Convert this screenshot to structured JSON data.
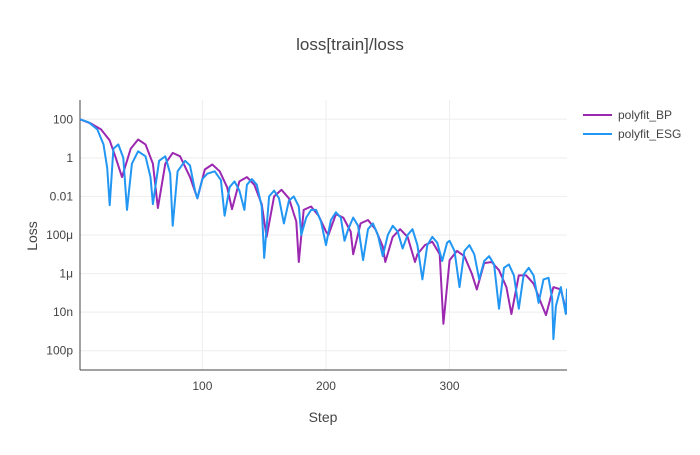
{
  "chart_data": {
    "type": "line",
    "title": "loss[train]/loss",
    "xlabel": "Step",
    "ylabel": "Loss",
    "xlim": [
      1,
      395
    ],
    "ylim": [
      1e-11,
      1000
    ],
    "yscale": "log",
    "grid": true,
    "legend": "top-right",
    "x_ticks": [
      100,
      200,
      300
    ],
    "x_tick_labels": [
      "100",
      "200",
      "300"
    ],
    "y_ticks": [
      100,
      1,
      0.01,
      0.0001,
      1e-06,
      1e-08,
      1e-10
    ],
    "y_tick_labels": [
      "100",
      "1",
      "0.01",
      "100μ",
      "1μ",
      "10n",
      "100p"
    ],
    "series": [
      {
        "name": "polyfit_BP",
        "color": "#9c27b0",
        "points": [
          [
            1,
            100
          ],
          [
            10,
            60
          ],
          [
            18,
            30
          ],
          [
            25,
            8
          ],
          [
            30,
            1
          ],
          [
            35,
            0.1
          ],
          [
            42,
            3
          ],
          [
            48,
            9
          ],
          [
            54,
            5
          ],
          [
            60,
            0.5
          ],
          [
            64,
            0.0025
          ],
          [
            70,
            0.5
          ],
          [
            76,
            1.8
          ],
          [
            82,
            1.2
          ],
          [
            90,
            0.1
          ],
          [
            96,
            0.008
          ],
          [
            102,
            0.25
          ],
          [
            108,
            0.45
          ],
          [
            114,
            0.2
          ],
          [
            120,
            0.03
          ],
          [
            124,
            0.0022
          ],
          [
            130,
            0.06
          ],
          [
            136,
            0.1
          ],
          [
            142,
            0.04
          ],
          [
            148,
            0.004
          ],
          [
            152,
            8e-05
          ],
          [
            158,
            0.01
          ],
          [
            164,
            0.022
          ],
          [
            170,
            0.008
          ],
          [
            176,
            0.0005
          ],
          [
            178,
            4e-06
          ],
          [
            182,
            0.002
          ],
          [
            188,
            0.003
          ],
          [
            194,
            0.001
          ],
          [
            200,
            0.00015
          ],
          [
            202,
            0.0001
          ],
          [
            208,
            0.0012
          ],
          [
            214,
            0.0008
          ],
          [
            220,
            0.00015
          ],
          [
            222,
            1e-05
          ],
          [
            228,
            0.0004
          ],
          [
            234,
            0.0006
          ],
          [
            240,
            0.0002
          ],
          [
            246,
            2.5e-05
          ],
          [
            248,
            4e-06
          ],
          [
            254,
            8e-05
          ],
          [
            260,
            0.0002
          ],
          [
            266,
            8e-05
          ],
          [
            272,
            4e-06
          ],
          [
            274,
            1e-05
          ],
          [
            280,
            3e-05
          ],
          [
            286,
            4.5e-05
          ],
          [
            292,
            1e-05
          ],
          [
            295,
            2.5e-09
          ],
          [
            300,
            5e-06
          ],
          [
            306,
            1.5e-05
          ],
          [
            312,
            8e-06
          ],
          [
            318,
            1e-06
          ],
          [
            322,
            1.5e-07
          ],
          [
            328,
            3.5e-06
          ],
          [
            334,
            4e-06
          ],
          [
            340,
            1.5e-06
          ],
          [
            346,
            2e-07
          ],
          [
            350,
            8e-09
          ],
          [
            356,
            8e-07
          ],
          [
            362,
            8e-07
          ],
          [
            368,
            3e-07
          ],
          [
            374,
            3e-08
          ],
          [
            378,
            7e-09
          ],
          [
            384,
            2e-07
          ],
          [
            390,
            1.5e-07
          ],
          [
            395,
            8e-09
          ]
        ]
      },
      {
        "name": "polyfit_ESG",
        "color": "#2196f3",
        "points": [
          [
            1,
            100
          ],
          [
            8,
            70
          ],
          [
            15,
            30
          ],
          [
            20,
            5
          ],
          [
            23,
            0.3
          ],
          [
            25,
            0.0035
          ],
          [
            28,
            3
          ],
          [
            32,
            5
          ],
          [
            36,
            1
          ],
          [
            39,
            0.002
          ],
          [
            43,
            0.5
          ],
          [
            48,
            2.2
          ],
          [
            54,
            1.2
          ],
          [
            58,
            0.1
          ],
          [
            60,
            0.004
          ],
          [
            65,
            0.7
          ],
          [
            70,
            1.2
          ],
          [
            74,
            0.15
          ],
          [
            76,
            0.0003
          ],
          [
            80,
            0.2
          ],
          [
            86,
            0.7
          ],
          [
            90,
            0.4
          ],
          [
            94,
            0.02
          ],
          [
            96,
            0.008
          ],
          [
            100,
            0.08
          ],
          [
            104,
            0.15
          ],
          [
            110,
            0.2
          ],
          [
            115,
            0.07
          ],
          [
            118,
            0.001
          ],
          [
            122,
            0.03
          ],
          [
            126,
            0.06
          ],
          [
            130,
            0.02
          ],
          [
            134,
            0.002
          ],
          [
            136,
            0.04
          ],
          [
            140,
            0.08
          ],
          [
            144,
            0.04
          ],
          [
            148,
            0.003
          ],
          [
            150,
            6.5e-06
          ],
          [
            154,
            0.01
          ],
          [
            158,
            0.02
          ],
          [
            162,
            0.008
          ],
          [
            166,
            0.0004
          ],
          [
            170,
            0.006
          ],
          [
            174,
            0.01
          ],
          [
            178,
            0.003
          ],
          [
            180,
            0.0001
          ],
          [
            184,
            0.0008
          ],
          [
            188,
            0.002
          ],
          [
            192,
            0.002
          ],
          [
            196,
            0.0005
          ],
          [
            200,
            3e-05
          ],
          [
            204,
            0.0006
          ],
          [
            208,
            0.0015
          ],
          [
            212,
            0.0008
          ],
          [
            215,
            5e-05
          ],
          [
            218,
            0.0002
          ],
          [
            222,
            0.0008
          ],
          [
            226,
            0.0003
          ],
          [
            230,
            5e-06
          ],
          [
            234,
            0.0002
          ],
          [
            238,
            0.0004
          ],
          [
            242,
            0.0001
          ],
          [
            246,
            8e-06
          ],
          [
            250,
            0.0001
          ],
          [
            254,
            0.0003
          ],
          [
            258,
            0.00015
          ],
          [
            262,
            2e-05
          ],
          [
            266,
            0.0001
          ],
          [
            270,
            0.0002
          ],
          [
            274,
            3e-05
          ],
          [
            278,
            5e-07
          ],
          [
            282,
            3e-05
          ],
          [
            286,
            8e-05
          ],
          [
            290,
            4e-05
          ],
          [
            294,
            4.5e-06
          ],
          [
            298,
            4e-05
          ],
          [
            300,
            5e-05
          ],
          [
            304,
            1.5e-05
          ],
          [
            308,
            2e-07
          ],
          [
            312,
            1.5e-05
          ],
          [
            316,
            3e-05
          ],
          [
            320,
            1e-05
          ],
          [
            324,
            5e-07
          ],
          [
            328,
            4.5e-06
          ],
          [
            332,
            8e-06
          ],
          [
            336,
            3e-06
          ],
          [
            340,
            1.5e-08
          ],
          [
            344,
            2e-06
          ],
          [
            348,
            3e-06
          ],
          [
            352,
            8e-07
          ],
          [
            356,
            1.5e-08
          ],
          [
            360,
            9e-07
          ],
          [
            364,
            2e-06
          ],
          [
            368,
            8e-07
          ],
          [
            372,
            3e-08
          ],
          [
            376,
            5e-07
          ],
          [
            380,
            6e-07
          ],
          [
            383,
            5e-08
          ],
          [
            384,
            4e-10
          ],
          [
            386,
            2e-08
          ],
          [
            390,
            2e-07
          ],
          [
            394,
            8e-09
          ],
          [
            395,
            1.5e-07
          ],
          [
            397,
            2e-07
          ]
        ]
      }
    ]
  }
}
